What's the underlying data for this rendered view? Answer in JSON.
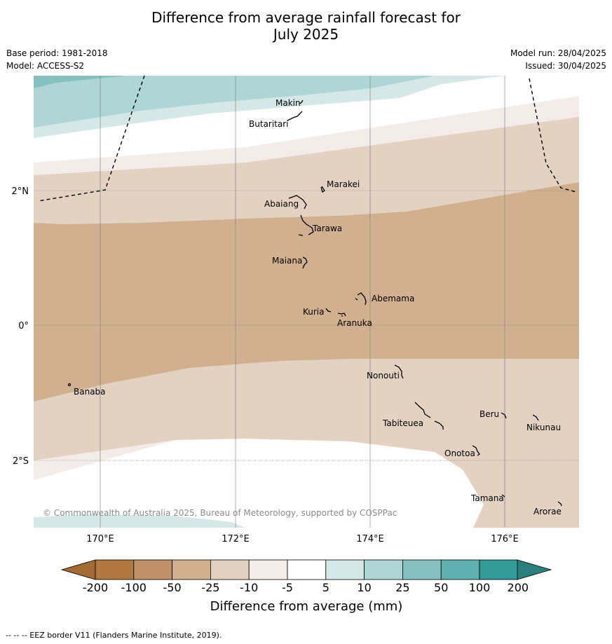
{
  "title_line1": "Difference from average rainfall forecast for",
  "title_line2": "July 2025",
  "base_period": "Base period: 1981-2018",
  "model": "Model: ACCESS-S2",
  "model_run": "Model run: 28/04/2025",
  "issued": "Issued: 30/04/2025",
  "copyright": "© Commonwealth of Australia 2025, Bureau of Meteorology, supported by COSPPac",
  "lon_labels": [
    "170°E",
    "172°E",
    "174°E",
    "176°E"
  ],
  "lat_labels": [
    "2°N",
    "0°",
    "2°S"
  ],
  "places": [
    "Makin",
    "Butaritari",
    "Marakei",
    "Abaiang",
    "Tarawa",
    "Maiana",
    "Abemama",
    "Kuria",
    "Aranuka",
    "Nonouti",
    "Banaba",
    "Beru",
    "Nikunau",
    "Tabiteuea",
    "Onotoa",
    "Tamana",
    "Arorae"
  ],
  "legend": {
    "title": "Difference from average (mm)",
    "ticks": [
      "-200",
      "-100",
      "-50",
      "-25",
      "-10",
      "-5",
      "5",
      "10",
      "25",
      "50",
      "100",
      "200"
    ],
    "colors": [
      "#a36b34",
      "#b07840",
      "#c09069",
      "#d1b090",
      "#e3d2c2",
      "#f4ece8",
      "#ffffff",
      "#d5e8e7",
      "#aed6d5",
      "#86c1c0",
      "#5fb0ae",
      "#349b98",
      "#2a7f7c"
    ]
  },
  "footnote": "--  --  -- EEZ border V11 (Flanders Marine Institute, 2019)."
}
